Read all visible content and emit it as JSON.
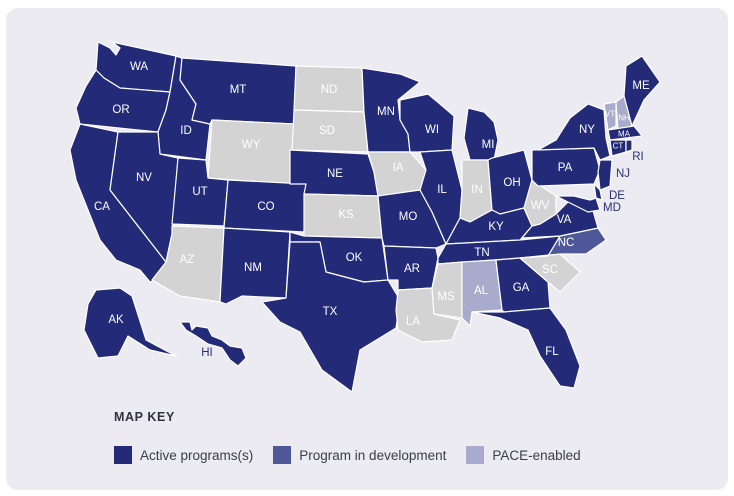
{
  "colors": {
    "active": "#232a78",
    "development": "#4e5797",
    "pace": "#a8abcc",
    "none": "#d3d3d3",
    "background": "#ebebf1",
    "border": "#ffffff",
    "label_on_dark": "#ffffff",
    "label_on_light": "#ffffff"
  },
  "map": {
    "states": [
      {
        "code": "WA",
        "status": "active"
      },
      {
        "code": "OR",
        "status": "active"
      },
      {
        "code": "CA",
        "status": "active"
      },
      {
        "code": "ID",
        "status": "active"
      },
      {
        "code": "NV",
        "status": "active"
      },
      {
        "code": "MT",
        "status": "active"
      },
      {
        "code": "WY",
        "status": "none"
      },
      {
        "code": "UT",
        "status": "active"
      },
      {
        "code": "AZ",
        "status": "none"
      },
      {
        "code": "CO",
        "status": "active"
      },
      {
        "code": "NM",
        "status": "active"
      },
      {
        "code": "ND",
        "status": "none"
      },
      {
        "code": "SD",
        "status": "none"
      },
      {
        "code": "NE",
        "status": "active"
      },
      {
        "code": "KS",
        "status": "none"
      },
      {
        "code": "OK",
        "status": "active"
      },
      {
        "code": "TX",
        "status": "active"
      },
      {
        "code": "MN",
        "status": "active"
      },
      {
        "code": "IA",
        "status": "none"
      },
      {
        "code": "MO",
        "status": "active"
      },
      {
        "code": "AR",
        "status": "active"
      },
      {
        "code": "LA",
        "status": "none"
      },
      {
        "code": "WI",
        "status": "active"
      },
      {
        "code": "IL",
        "status": "active"
      },
      {
        "code": "MI",
        "status": "active"
      },
      {
        "code": "IN",
        "status": "none"
      },
      {
        "code": "OH",
        "status": "active"
      },
      {
        "code": "KY",
        "status": "active"
      },
      {
        "code": "TN",
        "status": "active"
      },
      {
        "code": "MS",
        "status": "none"
      },
      {
        "code": "AL",
        "status": "pace"
      },
      {
        "code": "GA",
        "status": "active"
      },
      {
        "code": "FL",
        "status": "active"
      },
      {
        "code": "SC",
        "status": "none"
      },
      {
        "code": "NC",
        "status": "development"
      },
      {
        "code": "VA",
        "status": "active"
      },
      {
        "code": "WV",
        "status": "none"
      },
      {
        "code": "PA",
        "status": "active"
      },
      {
        "code": "NY",
        "status": "active"
      },
      {
        "code": "VT",
        "status": "pace"
      },
      {
        "code": "NH",
        "status": "pace"
      },
      {
        "code": "ME",
        "status": "active"
      },
      {
        "code": "MA",
        "status": "active"
      },
      {
        "code": "CT",
        "status": "active"
      },
      {
        "code": "RI",
        "status": "active"
      },
      {
        "code": "NJ",
        "status": "active"
      },
      {
        "code": "DE",
        "status": "active"
      },
      {
        "code": "MD",
        "status": "active"
      },
      {
        "code": "AK",
        "status": "active"
      },
      {
        "code": "HI",
        "status": "active"
      }
    ]
  },
  "key": {
    "title": "MAP KEY",
    "items": [
      {
        "label": "Active programs(s)",
        "status": "active"
      },
      {
        "label": "Program in development",
        "status": "development"
      },
      {
        "label": "PACE-enabled",
        "status": "pace"
      }
    ]
  }
}
